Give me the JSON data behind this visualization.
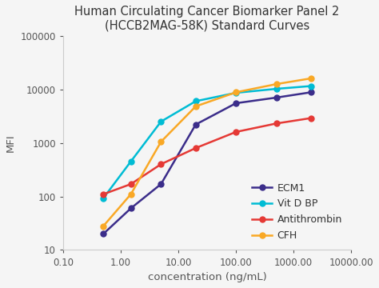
{
  "title_line1": "Human Circulating Cancer Biomarker Panel 2",
  "title_line2": "(HCCB2MAG-58K) Standard Curves",
  "xlabel": "concentration (ng/mL)",
  "ylabel": "MFI",
  "xlim": [
    0.1,
    10000
  ],
  "ylim": [
    10,
    100000
  ],
  "series": [
    {
      "label": "ECM1",
      "color": "#3b2d8a",
      "x": [
        0.5,
        1.5,
        5.0,
        20.0,
        100.0,
        500.0,
        2000.0
      ],
      "y": [
        20,
        60,
        170,
        2200,
        5500,
        7000,
        8800
      ]
    },
    {
      "label": "Vit D BP",
      "color": "#00bcd4",
      "x": [
        0.5,
        1.5,
        5.0,
        20.0,
        100.0,
        500.0,
        2000.0
      ],
      "y": [
        93,
        450,
        2500,
        6000,
        8600,
        10200,
        11500
      ]
    },
    {
      "label": "Antithrombin",
      "color": "#e53935",
      "x": [
        0.5,
        1.5,
        5.0,
        20.0,
        100.0,
        500.0,
        2000.0
      ],
      "y": [
        110,
        170,
        400,
        800,
        1600,
        2300,
        2900
      ]
    },
    {
      "label": "CFH",
      "color": "#f9a825",
      "x": [
        0.5,
        1.5,
        5.0,
        20.0,
        100.0,
        500.0,
        2000.0
      ],
      "y": [
        28,
        110,
        1050,
        4800,
        8800,
        12500,
        16000
      ]
    }
  ],
  "xtick_vals": [
    0.1,
    1.0,
    10.0,
    100.0,
    1000.0,
    10000.0
  ],
  "xtick_labels": [
    "0.10",
    "1.00",
    "10.00",
    "100.00",
    "1000.00",
    "10000.00"
  ],
  "ytick_vals": [
    10,
    100,
    1000,
    10000,
    100000
  ],
  "ytick_labels": [
    "10",
    "100",
    "1000",
    "10000",
    "100000"
  ],
  "background_color": "#f5f5f5",
  "plot_bg_color": "#f5f5f5",
  "title_fontsize": 10.5,
  "axis_label_fontsize": 9.5,
  "tick_fontsize": 8.5,
  "legend_fontsize": 9,
  "marker": "o",
  "markersize": 5,
  "linewidth": 1.8
}
